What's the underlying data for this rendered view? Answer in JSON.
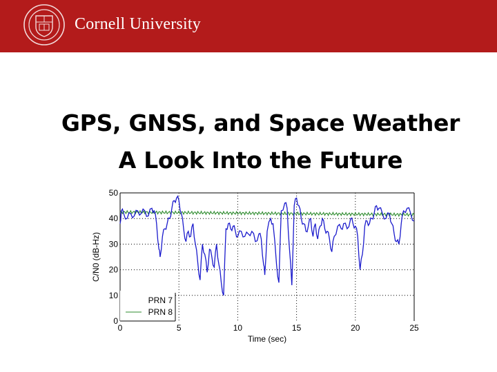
{
  "header": {
    "brand": "Cornell University",
    "color": "#b31b1b"
  },
  "slide": {
    "title_line1": "GPS, GNSS, and Space Weather",
    "title_line2": "A Look Into the Future"
  },
  "chart_data": {
    "type": "line",
    "title": "",
    "xlabel": "Time (sec)",
    "ylabel": "C/N0 (dB-Hz)",
    "xlim": [
      0,
      25
    ],
    "ylim": [
      0,
      50
    ],
    "xticks": [
      0,
      5,
      10,
      15,
      20,
      25
    ],
    "yticks": [
      0,
      10,
      20,
      30,
      40,
      50
    ],
    "grid": "dotted",
    "legend": {
      "position": "lower left",
      "entries": [
        "PRN 7",
        "PRN 8"
      ]
    },
    "series": [
      {
        "name": "PRN 7",
        "color": "#1a1acc",
        "x": [
          0,
          0.1,
          0.3,
          0.6,
          0.9,
          1.2,
          1.5,
          1.8,
          2.1,
          2.4,
          2.7,
          2.9,
          3.1,
          3.3,
          3.4,
          3.6,
          3.8,
          4.0,
          4.2,
          4.4,
          4.6,
          4.8,
          5.0,
          5.2,
          5.4,
          5.6,
          5.8,
          6.0,
          6.2,
          6.4,
          6.6,
          6.8,
          7.0,
          7.2,
          7.4,
          7.6,
          7.8,
          8.0,
          8.2,
          8.4,
          8.6,
          8.8,
          9.0,
          9.2,
          9.4,
          9.6,
          9.8,
          10.0,
          10.3,
          10.6,
          10.9,
          11.2,
          11.5,
          11.8,
          12.0,
          12.2,
          12.3,
          12.5,
          12.8,
          13.0,
          13.3,
          13.5,
          13.7,
          14.0,
          14.2,
          14.4,
          14.6,
          14.8,
          15.0,
          15.2,
          15.4,
          15.6,
          15.8,
          16.0,
          16.2,
          16.4,
          16.6,
          16.8,
          17.0,
          17.2,
          17.4,
          17.6,
          17.8,
          18.0,
          18.2,
          18.5,
          18.8,
          19.0,
          19.3,
          19.6,
          19.8,
          20.0,
          20.2,
          20.4,
          20.6,
          20.8,
          21.0,
          21.2,
          21.4,
          21.6,
          21.8,
          22.0,
          22.3,
          22.6,
          22.9,
          23.1,
          23.3,
          23.5,
          23.7,
          23.9,
          24.1,
          24.4,
          24.7,
          25.0
        ],
        "y": [
          38,
          43,
          42,
          40,
          42,
          41,
          43,
          42,
          43,
          41,
          44,
          43,
          38,
          28,
          25,
          33,
          36,
          38,
          40,
          44,
          47,
          48,
          47,
          42,
          36,
          31,
          35,
          33,
          38,
          30,
          23,
          16,
          30,
          26,
          19,
          28,
          25,
          21,
          30,
          22,
          15,
          10,
          36,
          38,
          36,
          37,
          35,
          33,
          35,
          33,
          34,
          35,
          31,
          34,
          32,
          22,
          18,
          35,
          40,
          38,
          22,
          15,
          43,
          46,
          44,
          28,
          14,
          45,
          48,
          45,
          40,
          38,
          35,
          37,
          40,
          33,
          38,
          32,
          37,
          40,
          36,
          35,
          32,
          27,
          33,
          37,
          36,
          38,
          36,
          40,
          38,
          37,
          33,
          20,
          26,
          37,
          39,
          38,
          40,
          42,
          45,
          44,
          42,
          40,
          42,
          38,
          34,
          31,
          30,
          38,
          43,
          44,
          42,
          39
        ],
        "y_range_note": "fluctuates between ~8 and ~48"
      },
      {
        "name": "PRN 8",
        "color": "#2e8b2e",
        "x": [
          0,
          5,
          10,
          15,
          20,
          25
        ],
        "y": [
          43,
          42.5,
          42.5,
          42,
          42,
          41.5
        ]
      }
    ]
  }
}
